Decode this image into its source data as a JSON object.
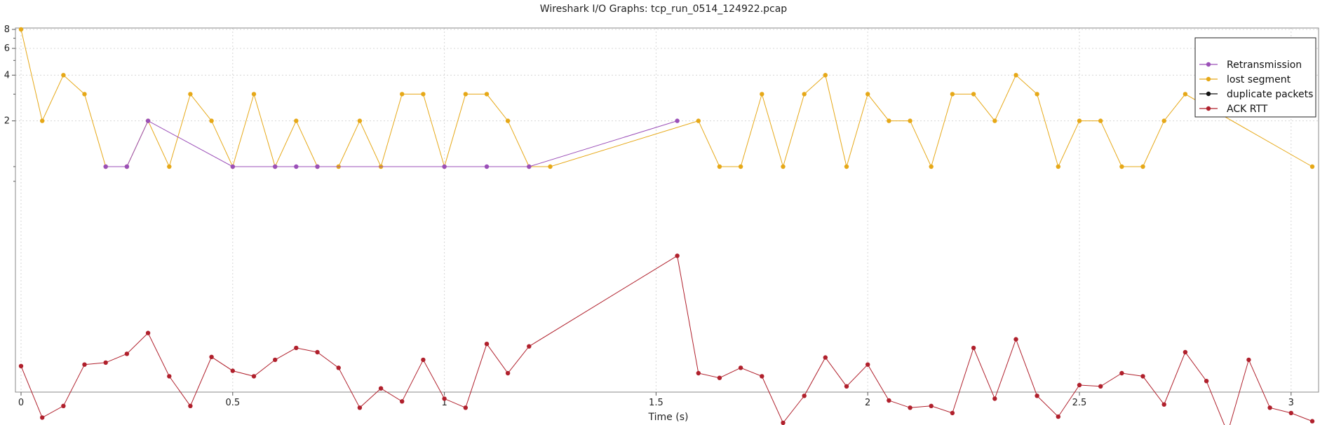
{
  "chart_data": {
    "type": "line",
    "title": "Wireshark I/O Graphs: tcp_run_0514_124922.pcap",
    "xlabel": "Time (s)",
    "ylabel": "",
    "xlim": [
      -0.01,
      3.065
    ],
    "ylim_log": [
      0.8,
      8.4
    ],
    "log_y": true,
    "grid": true,
    "legend_position": "top-right",
    "x_ticks": [
      0,
      0.5,
      1,
      1.5,
      2,
      2.5,
      3
    ],
    "x_tick_labels": [
      "0",
      "0.5",
      "1",
      "1.5",
      "2",
      "2.5",
      "3"
    ],
    "y_ticks": [
      2,
      4,
      6,
      8
    ],
    "y_tick_labels": [
      "2",
      "4",
      "6",
      "8"
    ],
    "series": [
      {
        "name": "Retransmission",
        "color": "#9b4fb8",
        "x": [
          0.2,
          0.25,
          0.3,
          0.5,
          0.6,
          0.65,
          0.7,
          1.0,
          1.1,
          1.2,
          1.55
        ],
        "y": [
          1,
          1,
          2,
          1,
          1,
          1,
          1,
          1,
          1,
          1,
          2
        ]
      },
      {
        "name": "lost segment",
        "color": "#e6a817",
        "x": [
          0,
          0.05,
          0.1,
          0.15,
          0.2,
          0.25,
          0.3,
          0.35,
          0.4,
          0.45,
          0.5,
          0.55,
          0.6,
          0.65,
          0.7,
          0.75,
          0.8,
          0.85,
          0.9,
          0.95,
          1.0,
          1.05,
          1.1,
          1.15,
          1.2,
          1.25,
          1.6,
          1.65,
          1.7,
          1.75,
          1.8,
          1.85,
          1.9,
          1.95,
          2.0,
          2.05,
          2.1,
          2.15,
          2.2,
          2.25,
          2.3,
          2.35,
          2.4,
          2.45,
          2.5,
          2.55,
          2.6,
          2.65,
          2.7,
          2.75,
          3.05
        ],
        "y": [
          8,
          2,
          4,
          3,
          1,
          1,
          2,
          1,
          3,
          2,
          1,
          3,
          1,
          2,
          1,
          1,
          2,
          1,
          3,
          3,
          1,
          3,
          3,
          2,
          1,
          1,
          2,
          1,
          1,
          3,
          1,
          3,
          4,
          1,
          3,
          2,
          2,
          1,
          3,
          3,
          2,
          4,
          3,
          1,
          2,
          2,
          1,
          1,
          2,
          3,
          1
        ]
      },
      {
        "name": "duplicate packets",
        "color": "#111111",
        "x": [],
        "y": []
      },
      {
        "name": "ACK RTT",
        "color": "#b0202c",
        "x": [
          0,
          0.05,
          0.1,
          0.15,
          0.2,
          0.25,
          0.3,
          0.35,
          0.4,
          0.45,
          0.5,
          0.55,
          0.6,
          0.65,
          0.7,
          0.75,
          0.8,
          0.85,
          0.9,
          0.95,
          1.0,
          1.05,
          1.1,
          1.15,
          1.2,
          1.55,
          1.6,
          1.65,
          1.7,
          1.75,
          1.8,
          1.85,
          1.9,
          1.95,
          2.0,
          2.05,
          2.1,
          2.15,
          2.2,
          2.25,
          2.3,
          2.35,
          2.4,
          2.45,
          2.5,
          2.55,
          2.6,
          2.65,
          2.7,
          2.75,
          2.8,
          2.85,
          2.9,
          2.95,
          3.0,
          3.05
        ],
        "y": [
          0.0487,
          0.0223,
          0.0266,
          0.0498,
          0.0513,
          0.0586,
          0.0803,
          0.0417,
          0.0266,
          0.0559,
          0.0453,
          0.0417,
          0.0535,
          0.0641,
          0.0601,
          0.0474,
          0.0259,
          0.0347,
          0.0285,
          0.0535,
          0.0297,
          0.0259,
          0.0681,
          0.0437,
          0.0656,
          0.259,
          0.0437,
          0.0407,
          0.0474,
          0.0417,
          0.0206,
          0.031,
          0.0554,
          0.0358,
          0.0498,
          0.0289,
          0.0259,
          0.0266,
          0.0239,
          0.0641,
          0.0297,
          0.073,
          0.031,
          0.0226,
          0.0365,
          0.0358,
          0.0437,
          0.0417,
          0.0272,
          0.0601,
          0.0388,
          0.0177,
          0.0535,
          0.0259,
          0.0239,
          0.0211
        ]
      }
    ]
  }
}
